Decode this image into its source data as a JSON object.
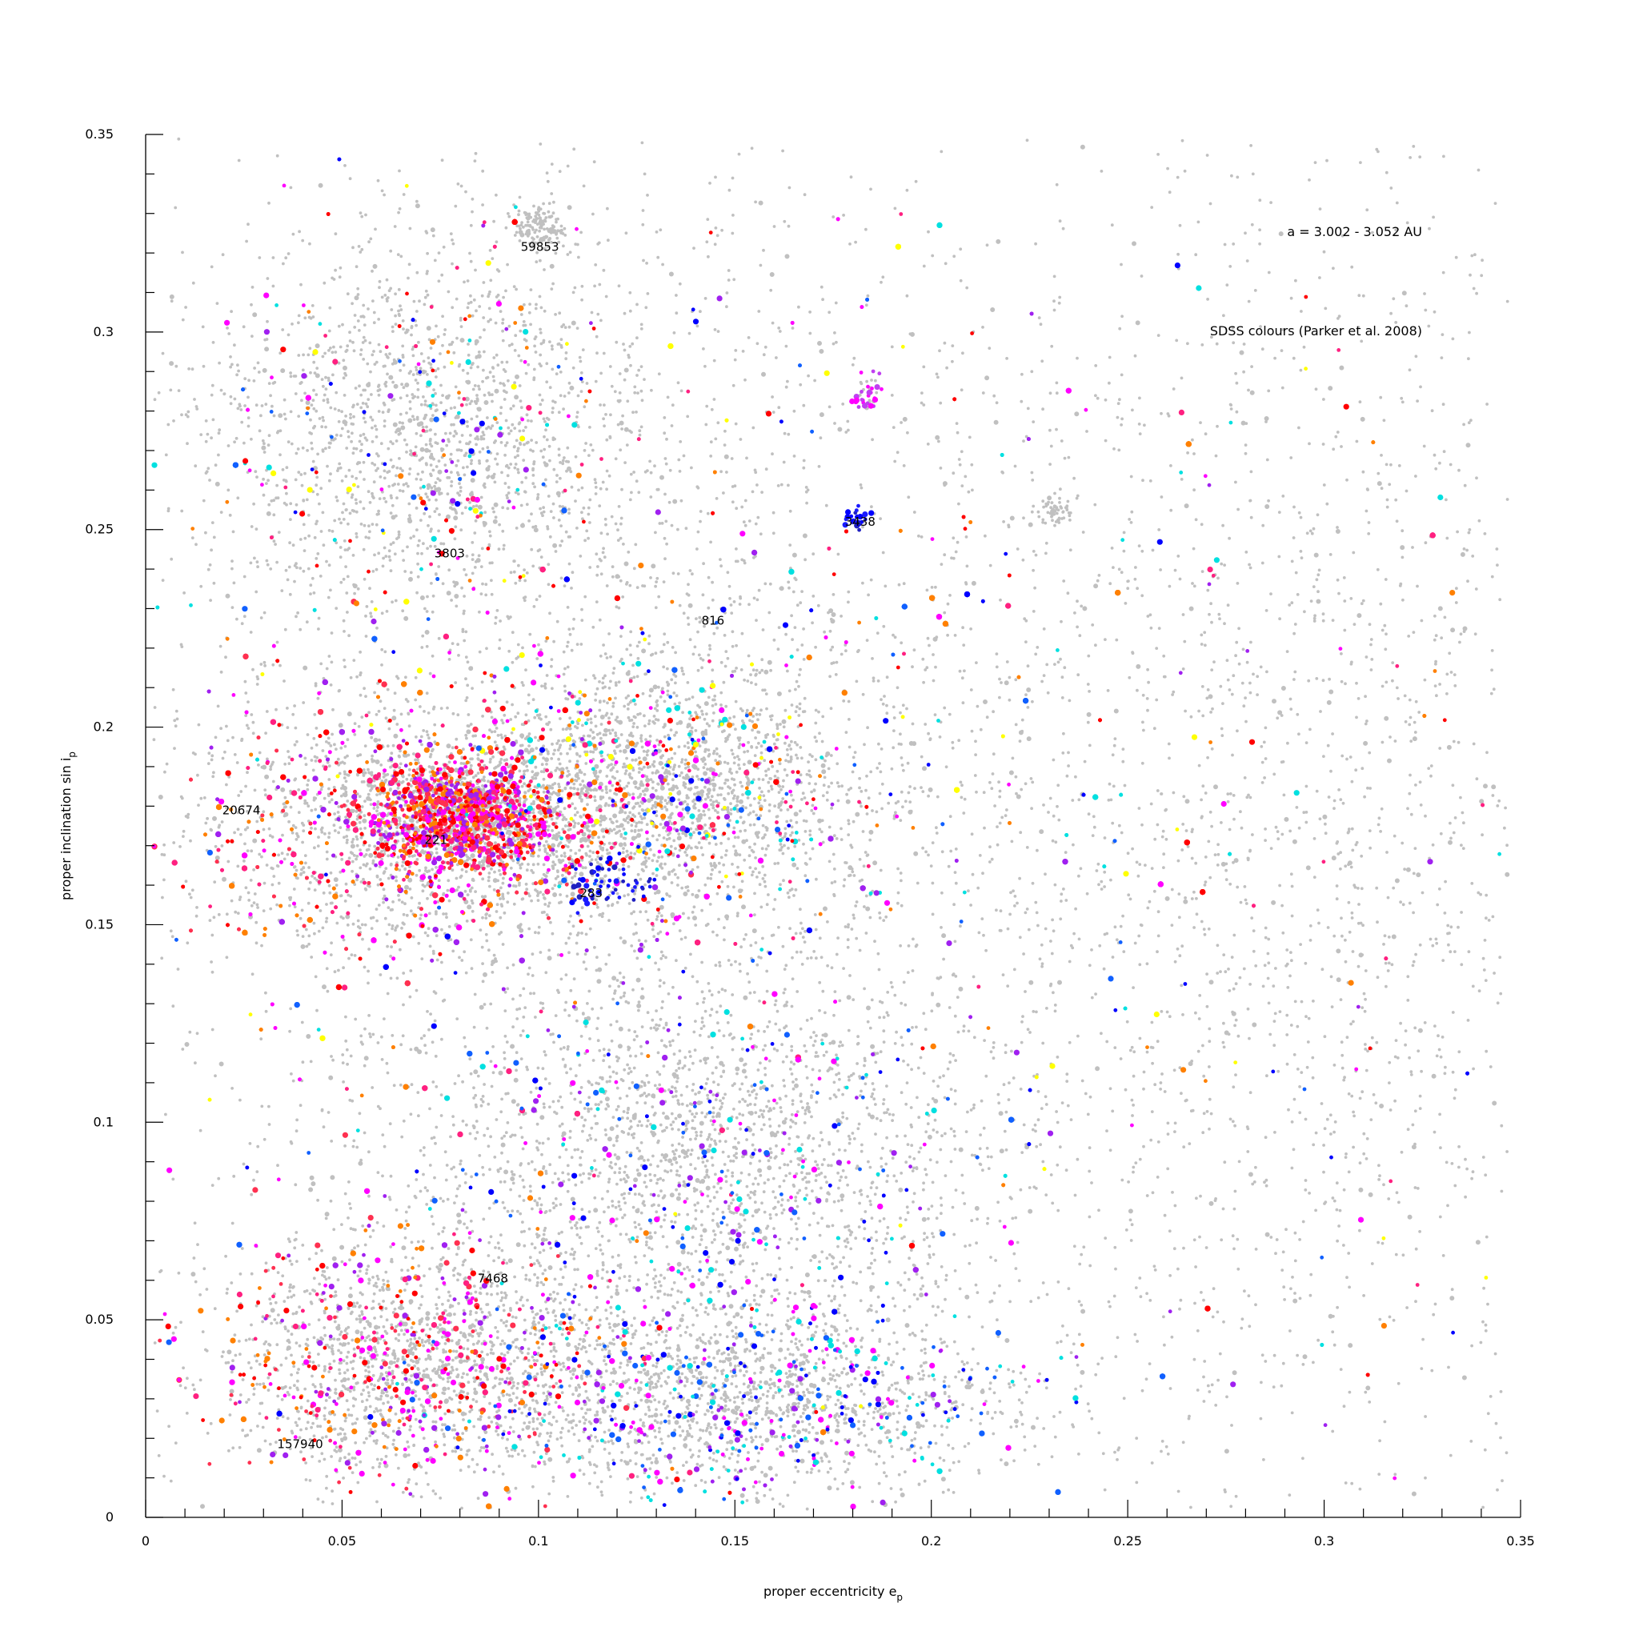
{
  "chart_data": {
    "type": "scatter",
    "xlabel": "proper eccentricity e",
    "xlabel_sub": "p",
    "ylabel": "proper inclination sin i",
    "ylabel_sub": "p",
    "xlim": [
      0,
      0.35
    ],
    "ylim": [
      0,
      0.35
    ],
    "xticks": [
      "0",
      "0.05",
      "0.1",
      "0.15",
      "0.2",
      "0.25",
      "0.3",
      "0.35"
    ],
    "yticks": [
      "0",
      "0.05",
      "0.1",
      "0.15",
      "0.2",
      "0.25",
      "0.3",
      "0.35"
    ],
    "xtick_values": [
      0,
      0.05,
      0.1,
      0.15,
      0.2,
      0.25,
      0.3,
      0.35
    ],
    "ytick_values": [
      0,
      0.05,
      0.1,
      0.15,
      0.2,
      0.25,
      0.3,
      0.35
    ],
    "minor_tick_step": 0.01,
    "grid": false,
    "annotations": [
      {
        "text": "a = 3.002 - 3.052 AU"
      },
      {
        "text": "SDSS colours (Parker et al. 2008)"
      }
    ],
    "family_labels": [
      {
        "text": "59853",
        "x": 0.0955,
        "y": 0.3215
      },
      {
        "text": "3438",
        "x": 0.178,
        "y": 0.252
      },
      {
        "text": "3803",
        "x": 0.0735,
        "y": 0.244
      },
      {
        "text": "816",
        "x": 0.1415,
        "y": 0.227
      },
      {
        "text": "20674",
        "x": 0.0195,
        "y": 0.179
      },
      {
        "text": "221",
        "x": 0.071,
        "y": 0.1715
      },
      {
        "text": "283",
        "x": 0.1105,
        "y": 0.158
      },
      {
        "text": "7468",
        "x": 0.0845,
        "y": 0.0605
      },
      {
        "text": "157940",
        "x": 0.0335,
        "y": 0.0185
      }
    ],
    "colors": {
      "background_points": "#c0c0c0",
      "sdss_palette": [
        "#ff0000",
        "#ff2080",
        "#ff00ff",
        "#a020f0",
        "#0000ff",
        "#1060ff",
        "#00e0e0",
        "#ffff00",
        "#ff8000"
      ]
    },
    "point_clusters": [
      {
        "name": "background",
        "cx": 0.17,
        "cy": 0.17,
        "sx": 0.095,
        "sy": 0.1,
        "n": 9000,
        "colored_frac": 0.08
      },
      {
        "name": "inner-uniform",
        "cx": 0.12,
        "cy": 0.16,
        "sx": 0.06,
        "sy": 0.09,
        "n": 4500,
        "colored_frac": 0.1
      },
      {
        "name": "eos-221",
        "cx": 0.07,
        "cy": 0.175,
        "sx": 0.03,
        "sy": 0.015,
        "n": 6500,
        "colored_frac": 0.25,
        "palette": "red"
      },
      {
        "name": "eos-core",
        "cx": 0.08,
        "cy": 0.178,
        "sx": 0.012,
        "sy": 0.007,
        "n": 1400,
        "colored_frac": 0.55,
        "palette": "red"
      },
      {
        "name": "eos-extension",
        "cx": 0.13,
        "cy": 0.185,
        "sx": 0.025,
        "sy": 0.015,
        "n": 1800,
        "colored_frac": 0.15
      },
      {
        "name": "upper-left",
        "cx": 0.07,
        "cy": 0.275,
        "sx": 0.03,
        "sy": 0.025,
        "n": 1800,
        "colored_frac": 0.1
      },
      {
        "name": "mid-low",
        "cx": 0.14,
        "cy": 0.09,
        "sx": 0.035,
        "sy": 0.025,
        "n": 2200,
        "colored_frac": 0.12,
        "palette": "blue"
      },
      {
        "name": "low-left-7468",
        "cx": 0.065,
        "cy": 0.04,
        "sx": 0.025,
        "sy": 0.015,
        "n": 2200,
        "colored_frac": 0.22,
        "palette": "red"
      },
      {
        "name": "low-mid",
        "cx": 0.15,
        "cy": 0.03,
        "sx": 0.035,
        "sy": 0.012,
        "n": 2400,
        "colored_frac": 0.2,
        "palette": "blue"
      },
      {
        "name": "283-chain",
        "cx": 0.118,
        "cy": 0.16,
        "sx": 0.006,
        "sy": 0.003,
        "n": 60,
        "colored_frac": 0.9,
        "palette": "deepblue"
      },
      {
        "name": "3438-cluster",
        "cx": 0.181,
        "cy": 0.2525,
        "sx": 0.0015,
        "sy": 0.0012,
        "n": 30,
        "colored_frac": 0.9,
        "palette": "deepblue"
      },
      {
        "name": "59853-cluster",
        "cx": 0.1005,
        "cy": 0.3265,
        "sx": 0.003,
        "sy": 0.0025,
        "n": 140,
        "colored_frac": 0.0
      },
      {
        "name": "magenta-cluster",
        "cx": 0.184,
        "cy": 0.284,
        "sx": 0.002,
        "sy": 0.0025,
        "n": 45,
        "colored_frac": 0.4,
        "palette": "magenta"
      },
      {
        "name": "232-cluster",
        "cx": 0.231,
        "cy": 0.255,
        "sx": 0.0025,
        "sy": 0.0018,
        "n": 60,
        "colored_frac": 0.0
      },
      {
        "name": "high-e-sparse",
        "cx": 0.3,
        "cy": 0.17,
        "sx": 0.04,
        "sy": 0.1,
        "n": 1400,
        "colored_frac": 0.05
      }
    ]
  }
}
